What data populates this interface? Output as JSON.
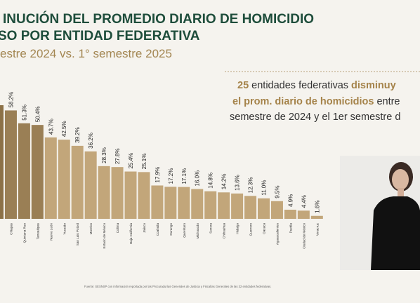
{
  "chart_data": {
    "type": "bar",
    "title": [
      "INUCIÓN DEL PROMEDIO DIARIO DE HOMICIDIO",
      "SO POR ENTIDAD FEDERATIVA"
    ],
    "subtitle": "estre 2024 vs. 1° semestre 2025",
    "callout": [
      "25",
      " entidades federativas ",
      "disminuy",
      "el prom. diario de homicidios",
      " entre",
      "semestre de 2024 y el 1er semestre d"
    ],
    "categories": [
      null,
      "Chiapas",
      "Quintana Roo",
      "Tamaulipas",
      "Nuevo León",
      "Yucatán",
      "San Luis Potosí",
      "Morelos",
      "Estado de México",
      "Colima",
      "Baja California",
      "Jalisco",
      "Coahuila",
      "Durango",
      "Querétaro",
      "Michoacán",
      "Sonora",
      "Chihuahua",
      "Hidalgo",
      "Guerrero",
      "Oaxaca",
      "Aguascalientes",
      "Puebla",
      "Ciudad de México",
      "Veracruz"
    ],
    "values": [
      61,
      58.2,
      51.3,
      50.4,
      43.7,
      42.5,
      39.2,
      36.2,
      28.3,
      27.8,
      25.4,
      25.1,
      17.9,
      17.2,
      17.1,
      16.0,
      14.8,
      14.2,
      13.6,
      12.3,
      11.0,
      9.5,
      4.9,
      4.4,
      1.6
    ],
    "value_labels": [
      null,
      "58.2%",
      "51.3%",
      "50.4%",
      "43.7%",
      "42.5%",
      "39.2%",
      "36.2%",
      "28.3%",
      "27.8%",
      "25.4%",
      "25.1%",
      "17.9%",
      "17.2%",
      "17.1%",
      "16.0%",
      "14.8%",
      "14.2%",
      "13.6%",
      "12.3%",
      "11.0%",
      "9.5%",
      "4.9%",
      "4.4%",
      "1.6%"
    ],
    "colors": [
      "#8c7147",
      "#9a7f55",
      "#9a7f55",
      "#9a7f55",
      "#c2a67a",
      "#c2a67a",
      "#c2a67a",
      "#c2a67a",
      "#c2a67a",
      "#c2a67a",
      "#c2a67a",
      "#c2a67a",
      "#c2a67a",
      "#c2a67a",
      "#c2a67a",
      "#c2a67a",
      "#c2a67a",
      "#c2a67a",
      "#c2a67a",
      "#c2a67a",
      "#c2a67a",
      "#c2a67a",
      "#c2a67a",
      "#c2a67a",
      "#c2a67a"
    ],
    "source": "Fuente: SESNSP con información reportada por las Procuradurías Generales de Justicia y Fiscalías Generales de las 32 entidades federativas."
  }
}
